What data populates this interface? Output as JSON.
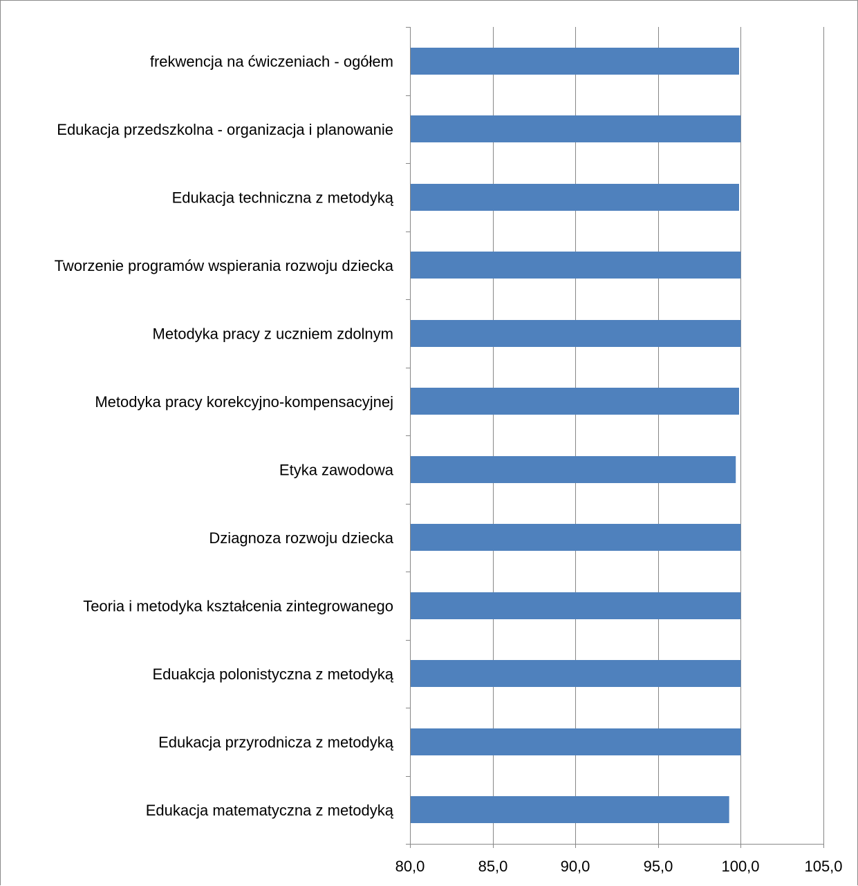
{
  "chart_data": {
    "type": "bar",
    "orientation": "horizontal",
    "title": "",
    "xlabel": "",
    "ylabel": "",
    "categories": [
      "frekwencja na ćwiczeniach - ogółem",
      "Edukacja przedszkolna - organizacja i planowanie",
      "Edukacja techniczna z metodyką",
      "Tworzenie programów wspierania rozwoju dziecka",
      "Metodyka pracy z uczniem zdolnym",
      "Metodyka pracy korekcyjno-kompensacyjnej",
      "Etyka zawodowa",
      "Dziagnoza rozwoju dziecka",
      "Teoria i metodyka kształcenia zintegrowanego",
      "Eduakcja polonistyczna z metodyką",
      "Edukacja przyrodnicza z metodyką",
      "Edukacja matematyczna z metodyką"
    ],
    "values": [
      99.9,
      100.0,
      99.9,
      100.0,
      100.0,
      99.9,
      99.7,
      100.0,
      100.0,
      100.0,
      100.0,
      99.3
    ],
    "xlim": [
      80,
      105
    ],
    "x_ticks": [
      "80,0",
      "85,0",
      "90,0",
      "95,0",
      "100,0",
      "105,0"
    ],
    "x_tick_values": [
      80,
      85,
      90,
      95,
      100,
      105
    ],
    "grid": "vertical major gridlines",
    "legend": "none",
    "bar_color": "#4F81BD"
  }
}
